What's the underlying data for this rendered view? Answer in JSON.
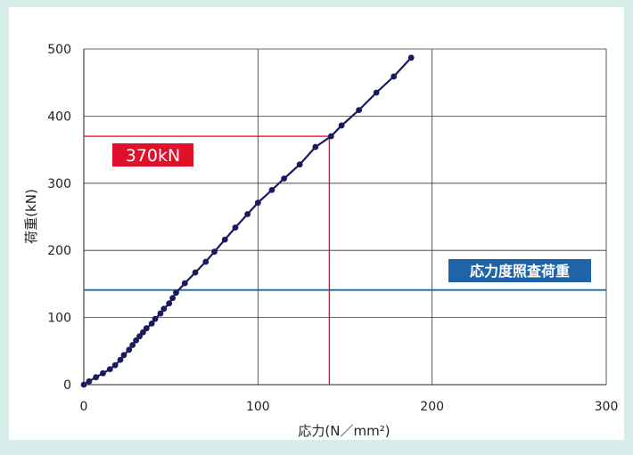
{
  "chart_data": {
    "type": "line",
    "xlabel": "応力(N／mm²)",
    "ylabel": "荷重(kN)",
    "xlim": [
      0,
      300
    ],
    "ylim": [
      0,
      500
    ],
    "x_ticks": [
      "0",
      "100",
      "200",
      "300"
    ],
    "y_ticks": [
      "0",
      "100",
      "200",
      "300",
      "400",
      "500"
    ],
    "grid": true,
    "series": [
      {
        "color": "#1a1a5e",
        "points": [
          [
            0,
            0
          ],
          [
            3,
            5
          ],
          [
            7,
            11
          ],
          [
            11,
            17
          ],
          [
            15,
            23
          ],
          [
            18,
            29
          ],
          [
            21,
            37
          ],
          [
            23,
            44
          ],
          [
            26,
            52
          ],
          [
            28,
            59
          ],
          [
            30,
            66
          ],
          [
            32,
            72
          ],
          [
            34,
            78
          ],
          [
            36,
            84
          ],
          [
            39,
            91
          ],
          [
            41,
            98
          ],
          [
            44,
            106
          ],
          [
            46,
            113
          ],
          [
            49,
            121
          ],
          [
            51,
            129
          ],
          [
            53,
            137
          ],
          [
            58,
            151
          ],
          [
            64,
            167
          ],
          [
            70,
            183
          ],
          [
            75,
            198
          ],
          [
            81,
            216
          ],
          [
            87,
            234
          ],
          [
            94,
            254
          ],
          [
            100,
            271
          ],
          [
            108,
            290
          ],
          [
            115,
            307
          ],
          [
            124,
            328
          ],
          [
            133,
            354
          ],
          [
            142,
            370
          ],
          [
            148,
            386
          ],
          [
            158,
            409
          ],
          [
            168,
            435
          ],
          [
            178,
            459
          ],
          [
            188,
            487
          ]
        ]
      }
    ],
    "annotations": [
      {
        "label": "370kN",
        "x": 141,
        "y": 370,
        "color": "#e0102a"
      },
      {
        "label": "応力度照査荷重",
        "y": 141,
        "color": "#1f64a8"
      }
    ]
  }
}
